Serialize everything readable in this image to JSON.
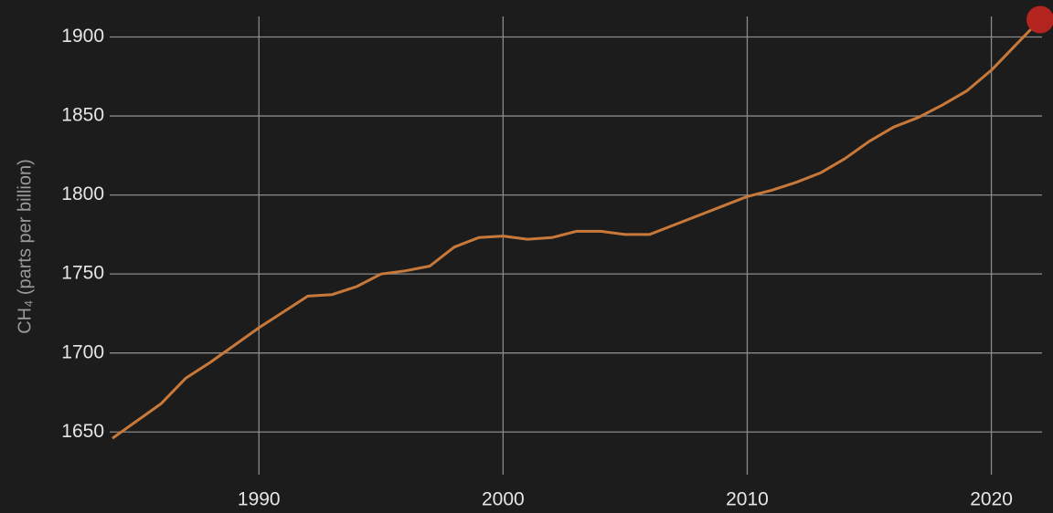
{
  "chart_data": {
    "type": "line",
    "y_label": "CH₄ (parts per billion)",
    "x": [
      1984,
      1985,
      1986,
      1987,
      1988,
      1989,
      1990,
      1991,
      1992,
      1993,
      1994,
      1995,
      1996,
      1997,
      1998,
      1999,
      2000,
      2001,
      2002,
      2003,
      2004,
      2005,
      2006,
      2007,
      2008,
      2009,
      2010,
      2011,
      2012,
      2013,
      2014,
      2015,
      2016,
      2017,
      2018,
      2019,
      2020,
      2021,
      2022
    ],
    "series": [
      {
        "name": "CH₄",
        "color": "#c8793a",
        "values": [
          1646,
          1657,
          1668,
          1684,
          1694,
          1705,
          1716,
          1726,
          1736,
          1737,
          1742,
          1750,
          1752,
          1755,
          1767,
          1773,
          1774,
          1772,
          1773,
          1777,
          1777,
          1775,
          1775,
          1781,
          1787,
          1793,
          1799,
          1803,
          1808,
          1814,
          1823,
          1834,
          1843,
          1849,
          1857,
          1866,
          1879,
          1895,
          1911
        ]
      }
    ],
    "marker_color": "#b3241f",
    "xlim": [
      1984,
      2022
    ],
    "xticks": [
      1990,
      2000,
      2010,
      2020
    ],
    "ylim": [
      1623,
      1913
    ],
    "yticks": [
      1650,
      1700,
      1750,
      1800,
      1850,
      1900
    ],
    "grid": true
  }
}
